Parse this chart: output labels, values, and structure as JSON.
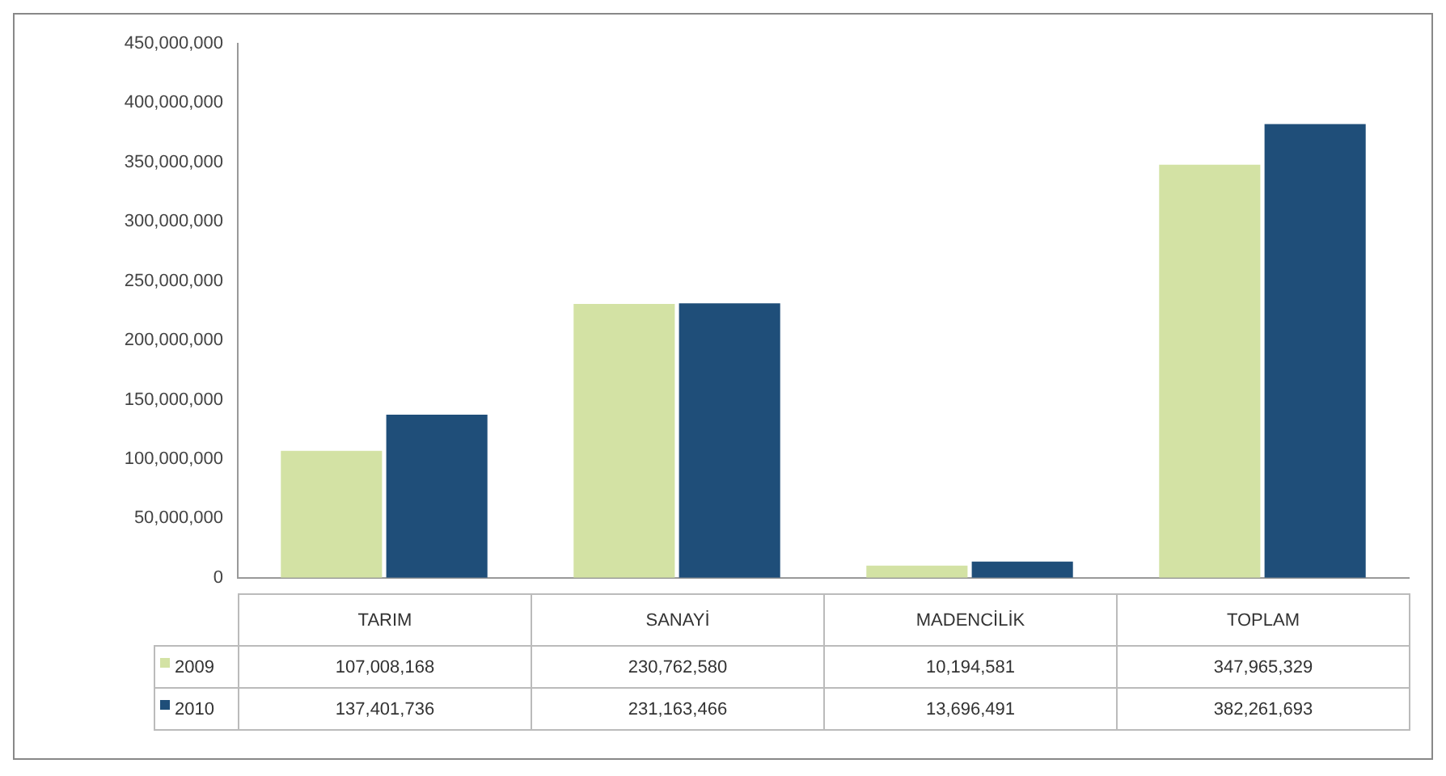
{
  "chart_data": {
    "type": "bar",
    "categories": [
      "TARIM",
      "SANAYİ",
      "MADENCİLİK",
      "TOPLAM"
    ],
    "series": [
      {
        "name": "2009",
        "color": "#d3e2a4",
        "values": [
          107008168,
          230762580,
          10194581,
          347965329
        ],
        "value_labels": [
          "107,008,168",
          "230,762,580",
          "10,194,581",
          "347,965,329"
        ]
      },
      {
        "name": "2010",
        "color": "#1f4e79",
        "values": [
          137401736,
          231163466,
          13696491,
          382261693
        ],
        "value_labels": [
          "137,401,736",
          "231,163,466",
          "13,696,491",
          "382,261,693"
        ]
      }
    ],
    "ylim": [
      0,
      450000000
    ],
    "yticks": [
      {
        "value": 0,
        "label": "0"
      },
      {
        "value": 50000000,
        "label": "50,000,000"
      },
      {
        "value": 100000000,
        "label": "100,000,000"
      },
      {
        "value": 150000000,
        "label": "150,000,000"
      },
      {
        "value": 200000000,
        "label": "200,000,000"
      },
      {
        "value": 250000000,
        "label": "250,000,000"
      },
      {
        "value": 300000000,
        "label": "300,000,000"
      },
      {
        "value": 350000000,
        "label": "350,000,000"
      },
      {
        "value": 400000000,
        "label": "400,000,000"
      },
      {
        "value": 450000000,
        "label": "450,000,000"
      }
    ],
    "legend": "bottom",
    "grid": false
  }
}
